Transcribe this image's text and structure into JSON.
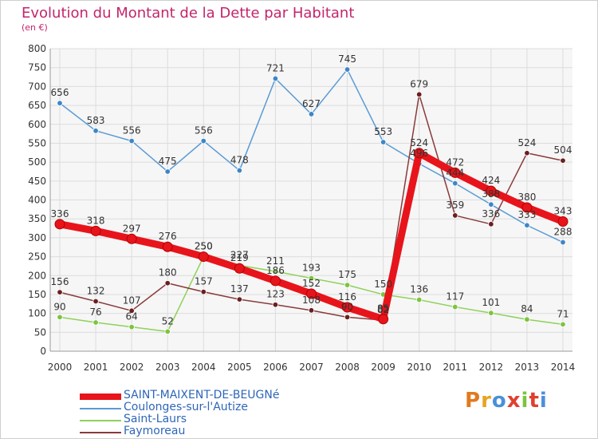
{
  "title": "Evolution du Montant de la Dette par Habitant",
  "unit_label": "(en €)",
  "logo_text": "Proxiti",
  "colors": {
    "title": "#c3256c",
    "axis_text": "#333333",
    "grid": "#dcdcdc",
    "legend_text": "#2e66b8"
  },
  "chart_data": {
    "type": "line",
    "x": [
      "2000",
      "2001",
      "2002",
      "2003",
      "2004",
      "2005",
      "2006",
      "2007",
      "2008",
      "2009",
      "2010",
      "2011",
      "2012",
      "2013",
      "2014"
    ],
    "ylim": [
      0,
      800
    ],
    "yticks": [
      0,
      50,
      100,
      150,
      200,
      250,
      300,
      350,
      400,
      450,
      500,
      550,
      600,
      650,
      700,
      750,
      800
    ],
    "grid": true,
    "legend_position": "bottom-left",
    "series": [
      {
        "name": "SAINT-MAIXENT-DE-BEUGNé",
        "color": "#e8141b",
        "marker_color": "#e8141b",
        "values": [
          336,
          318,
          297,
          276,
          250,
          219,
          186,
          152,
          116,
          85,
          524,
          472,
          424,
          380,
          343
        ],
        "labels": [
          "336",
          "318",
          "297",
          "276",
          "250",
          "219",
          "186",
          "152",
          "116",
          "85",
          "524",
          "472",
          "424",
          "380",
          "343"
        ],
        "style": "thick"
      },
      {
        "name": "Coulonges-sur-l'Autize",
        "color": "#5a9bd4",
        "marker_color": "#3d86c8",
        "values": [
          656,
          583,
          556,
          475,
          556,
          478,
          721,
          627,
          745,
          553,
          496,
          444,
          388,
          333,
          288
        ],
        "labels": [
          "656",
          "583",
          "556",
          "475",
          "556",
          "478",
          "721",
          "627",
          "745",
          "553",
          "496",
          "444",
          "388",
          "333",
          "288"
        ],
        "style": "thin"
      },
      {
        "name": "Saint-Laurs",
        "color": "#8fd15a",
        "marker_color": "#7cc43e",
        "values": [
          90,
          76,
          64,
          52,
          250,
          227,
          211,
          193,
          175,
          150,
          136,
          117,
          101,
          84,
          71
        ],
        "labels": [
          "90",
          "76",
          "64",
          "52",
          "250",
          "227",
          "211",
          "193",
          "175",
          "150",
          "136",
          "117",
          "101",
          "84",
          "71"
        ],
        "style": "thin"
      },
      {
        "name": "Faymoreau",
        "color": "#8a3a3a",
        "marker_color": "#6b1f1f",
        "values": [
          156,
          132,
          107,
          180,
          157,
          137,
          123,
          108,
          90,
          82,
          679,
          359,
          336,
          524,
          504
        ],
        "labels": [
          "156",
          "132",
          "107",
          "180",
          "157",
          "137",
          "123",
          "108",
          "90",
          "82",
          "679",
          "359",
          "336",
          "524",
          "504"
        ],
        "style": "thin"
      }
    ]
  }
}
